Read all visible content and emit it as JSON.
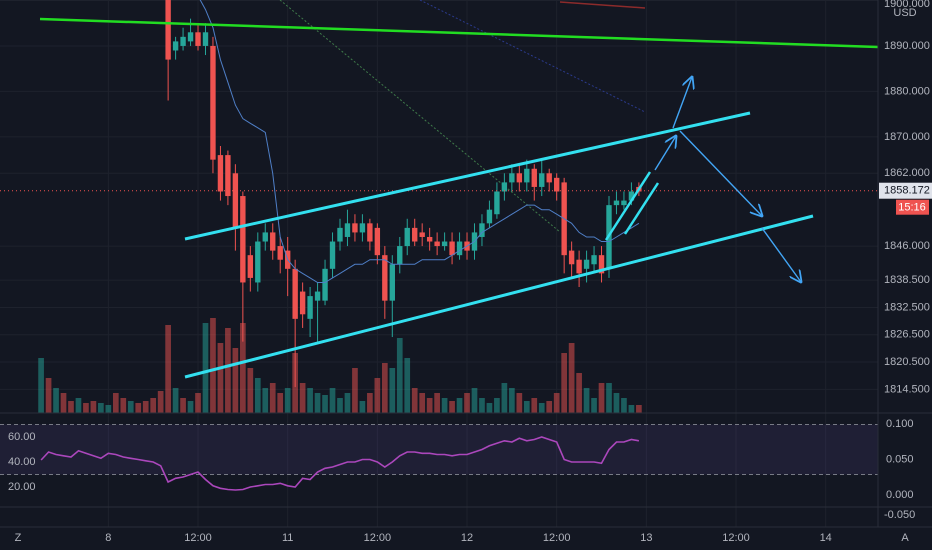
{
  "chart_data": {
    "type": "candlestick",
    "currency": "USD",
    "xlim": [
      -5.5,
      112
    ],
    "xticks": [
      {
        "value": 9,
        "label": "8"
      },
      {
        "value": 21,
        "label": "12:00"
      },
      {
        "value": 33,
        "label": "11"
      },
      {
        "value": 45,
        "label": "12:00"
      },
      {
        "value": 57,
        "label": "12"
      },
      {
        "value": 69,
        "label": "12:00"
      },
      {
        "value": 81,
        "label": "13"
      },
      {
        "value": 93,
        "label": "12:00"
      },
      {
        "value": 105,
        "label": "14"
      }
    ],
    "ylim": [
      1809.3,
      1900.1
    ],
    "yticks": [
      {
        "value": 1814.5,
        "label": "1814.500"
      },
      {
        "value": 1820.5,
        "label": "1820.500"
      },
      {
        "value": 1826.5,
        "label": "1826.500"
      },
      {
        "value": 1832.5,
        "label": "1832.500"
      },
      {
        "value": 1838.5,
        "label": "1838.500"
      },
      {
        "value": 1846,
        "label": "1846.000"
      },
      {
        "value": 1862,
        "label": "1862.000"
      },
      {
        "value": 1870,
        "label": "1870.000"
      },
      {
        "value": 1880,
        "label": "1880.000"
      },
      {
        "value": 1890,
        "label": "1890.000"
      },
      {
        "value": 1900,
        "label": "1900.000"
      }
    ],
    "grid": true,
    "up_color": "#26a69a",
    "down_color": "#ef5350",
    "last_price": {
      "value": 1858.172,
      "label": "1858.172"
    },
    "countdown": "15:16",
    "open": [
      null,
      null,
      null,
      null,
      null,
      null,
      null,
      null,
      null,
      null,
      null,
      null,
      null,
      null,
      null,
      null,
      null,
      1903,
      1889,
      1890,
      1891,
      1893,
      1890,
      1890,
      1866,
      1866,
      1862,
      1857,
      1844,
      1838,
      1847,
      1849,
      1846,
      1845,
      1841,
      1836,
      1830,
      1834,
      1834,
      1841,
      1847,
      1848,
      1851,
      1849,
      1851,
      1850,
      1844,
      1834,
      1842,
      1846,
      1850,
      1849,
      1848,
      1847,
      1846,
      1847,
      1844,
      1847,
      1845,
      1848,
      1851,
      1853,
      1858,
      1860,
      1862,
      1860,
      1863,
      1859,
      1862,
      1861,
      1860,
      1845,
      1843,
      1841,
      1842,
      1844,
      1841,
      1855,
      1855,
      1856,
      1859
    ],
    "high": [
      null,
      null,
      null,
      null,
      null,
      null,
      null,
      null,
      null,
      null,
      null,
      null,
      null,
      null,
      null,
      null,
      null,
      1905,
      1892,
      1894,
      1896,
      1895,
      1895,
      1892,
      1868,
      1867,
      1864,
      1858,
      1846,
      1849,
      1851,
      1851,
      1848,
      1848,
      1843,
      1838,
      1837,
      1838,
      1843,
      1849,
      1852,
      1854,
      1853,
      1853,
      1852,
      1851,
      1846,
      1844,
      1848,
      1852,
      1852,
      1851,
      1850,
      1849,
      1849,
      1849,
      1849,
      1849,
      1851,
      1853,
      1856,
      1860,
      1862,
      1864,
      1864,
      1865,
      1864,
      1865,
      1863,
      1862,
      1861,
      1847,
      1845,
      1845,
      1846,
      1846,
      1857,
      1858,
      1858,
      1860,
      1860
    ],
    "low": [
      null,
      null,
      null,
      null,
      null,
      null,
      null,
      null,
      null,
      null,
      null,
      null,
      null,
      null,
      null,
      null,
      null,
      1878,
      1887,
      1889,
      1890,
      1889,
      1888,
      1862,
      1856,
      1855,
      1845,
      1825,
      1836,
      1836,
      1845,
      1843,
      1840,
      1835,
      1815,
      1828,
      1826,
      1825,
      1833,
      1839,
      1845,
      1846,
      1847,
      1847,
      1845,
      1842,
      1830,
      1826,
      1840,
      1844,
      1846,
      1846,
      1845,
      1844,
      1845,
      1842,
      1843,
      1843,
      1843,
      1846,
      1850,
      1852,
      1856,
      1858,
      1858,
      1858,
      1856,
      1857,
      1858,
      1856,
      1840,
      1839,
      1837,
      1838,
      1840,
      1838,
      1839,
      1853,
      1854,
      1855,
      1857
    ],
    "close": [
      null,
      null,
      null,
      null,
      null,
      null,
      null,
      null,
      null,
      null,
      null,
      null,
      null,
      null,
      null,
      null,
      null,
      1887,
      1891,
      1892,
      1893,
      1890,
      1893,
      1865,
      1858,
      1857,
      1850,
      1838,
      1839,
      1847,
      1849,
      1845,
      1843,
      1841,
      1830,
      1831,
      1835,
      1836,
      1841,
      1847,
      1850,
      1851,
      1849,
      1851,
      1847,
      1844,
      1834,
      1842,
      1846,
      1850,
      1847,
      1848,
      1847,
      1846,
      1847,
      1844,
      1847,
      1845,
      1849,
      1851,
      1854,
      1858,
      1860,
      1862,
      1860,
      1863,
      1859,
      1862,
      1860,
      1858,
      1844,
      1842,
      1840,
      1843,
      1844,
      1840,
      1855,
      1856,
      1856,
      1858,
      1858
    ],
    "ma": {
      "color": "#4f7fc7",
      "values": [
        null,
        null,
        null,
        null,
        null,
        null,
        null,
        null,
        null,
        null,
        null,
        null,
        null,
        null,
        null,
        null,
        null,
        null,
        null,
        null,
        null,
        1901,
        1898,
        1894,
        1887,
        1882,
        1877,
        1874,
        1873,
        1872,
        1871,
        1862,
        1848,
        1843,
        1841,
        1840,
        1839,
        1838,
        1838,
        1839,
        1840,
        1841,
        1842,
        1842,
        1843,
        1843,
        1843,
        1842,
        1842,
        1842,
        1842,
        1843,
        1843,
        1843,
        1843,
        1844,
        1845,
        1846,
        1847,
        1849,
        1850,
        1851,
        1852,
        1853,
        1854,
        1855,
        1855,
        1854,
        1854,
        1853,
        1852,
        1851,
        1849,
        1848,
        1848,
        1847,
        1847,
        1848,
        1849,
        1850,
        1851
      ]
    },
    "volume": {
      "ylim": [
        0,
        100
      ],
      "up_color": "#26a69a80",
      "down_color": "#ef535080",
      "values": [
        55,
        35,
        25,
        20,
        12,
        15,
        10,
        12,
        10,
        8,
        20,
        15,
        12,
        10,
        12,
        15,
        22,
        88,
        25,
        15,
        12,
        20,
        90,
        95,
        70,
        85,
        65,
        90,
        45,
        35,
        25,
        30,
        20,
        25,
        60,
        30,
        25,
        20,
        18,
        25,
        15,
        20,
        45,
        12,
        20,
        35,
        50,
        45,
        75,
        55,
        25,
        20,
        15,
        20,
        15,
        12,
        15,
        20,
        25,
        15,
        10,
        15,
        30,
        25,
        20,
        12,
        15,
        10,
        12,
        20,
        60,
        70,
        40,
        25,
        15,
        30,
        30,
        20,
        15,
        8,
        8
      ],
      "directions": [
        "up",
        "down",
        "up",
        "down",
        "down",
        "up",
        "down",
        "down",
        "up",
        "up",
        "down",
        "down",
        "up",
        "down",
        "down",
        "down",
        "down",
        "down",
        "up",
        "down",
        "up",
        "down",
        "up",
        "down",
        "down",
        "down",
        "down",
        "down",
        "down",
        "up",
        "up",
        "down",
        "down",
        "up",
        "down",
        "down",
        "up",
        "up",
        "up",
        "up",
        "up",
        "up",
        "down",
        "up",
        "down",
        "down",
        "down",
        "up",
        "up",
        "up",
        "down",
        "down",
        "down",
        "down",
        "up",
        "down",
        "up",
        "down",
        "up",
        "up",
        "up",
        "up",
        "up",
        "up",
        "down",
        "up",
        "down",
        "up",
        "down",
        "down",
        "down",
        "down",
        "down",
        "up",
        "up",
        "down",
        "up",
        "up",
        "up",
        "up",
        "down"
      ]
    },
    "rsi": {
      "color": "#ab47bc",
      "ylim": [
        4,
        79.2
      ],
      "yticks": [
        {
          "value": 20,
          "label": "20.00"
        },
        {
          "value": 40,
          "label": "40.00"
        },
        {
          "value": 60,
          "label": "60.00"
        }
      ],
      "band": [
        30,
        70
      ],
      "y2lim": [
        -0.0169,
        0.1155
      ],
      "y2ticks": [
        {
          "value": 0,
          "label": "0.000"
        },
        {
          "value": 0.05,
          "label": "0.050"
        },
        {
          "value": 0.1,
          "label": "0.100"
        }
      ],
      "values": [
        41.6,
        48,
        46,
        45,
        44,
        49,
        47,
        45,
        43,
        47,
        46,
        44,
        43,
        42,
        41,
        40,
        37,
        24,
        27,
        28,
        30,
        32,
        26,
        21,
        19,
        18,
        17.6,
        18,
        20,
        21,
        22,
        22,
        23,
        21,
        20,
        27,
        26,
        32,
        35,
        36,
        38,
        40,
        40,
        42,
        42,
        40,
        36,
        40,
        45,
        48,
        48,
        47,
        47,
        46,
        46,
        45,
        46,
        46,
        48,
        50,
        53,
        55,
        57,
        56,
        59,
        57,
        58,
        60,
        58,
        56,
        42,
        40,
        40,
        40,
        40,
        39,
        50,
        56,
        56,
        58,
        57
      ]
    },
    "lower_pane": {
      "ylim": [
        -0.08,
        -0.03
      ],
      "yticks": [
        {
          "value": -0.05,
          "label": "-0.050"
        }
      ]
    },
    "corner_labels": [
      "Z",
      "A"
    ]
  }
}
